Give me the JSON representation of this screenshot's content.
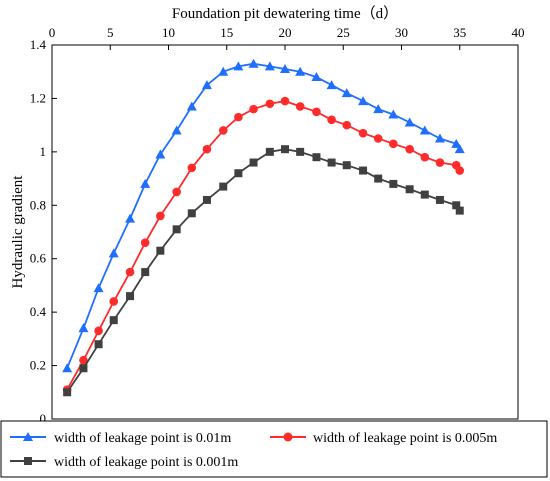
{
  "chart_data": {
    "type": "line",
    "xlabel": "Foundation pit dewatering time（d）",
    "ylabel": "Hydraulic gradient",
    "xlim": [
      0,
      40
    ],
    "ylim": [
      0,
      1.4
    ],
    "x_ticks": [
      0,
      5,
      10,
      15,
      20,
      25,
      30,
      35,
      40
    ],
    "y_ticks": [
      0,
      0.2,
      0.4,
      0.6,
      0.8,
      1,
      1.2,
      1.4
    ],
    "x_tick_labels": [
      "0",
      "5",
      "10",
      "15",
      "20",
      "25",
      "30",
      "35",
      "40"
    ],
    "y_tick_labels": [
      "0",
      "0.2",
      "0.4",
      "0.6",
      "0.8",
      "1",
      "1.2",
      "1.4"
    ],
    "x_axis_position": "top",
    "grid": false,
    "legend_position": "bottom",
    "series": [
      {
        "name": "width of leakage point is 0.01m",
        "color": "#1f6fff",
        "marker": "triangle",
        "x": [
          1.3,
          2.7,
          4.0,
          5.3,
          6.7,
          8.0,
          9.3,
          10.7,
          12.0,
          13.3,
          14.7,
          16.0,
          17.3,
          18.7,
          20.0,
          21.3,
          22.7,
          24.0,
          25.3,
          26.7,
          28.0,
          29.3,
          30.7,
          32.0,
          33.3,
          34.7,
          35.0
        ],
        "y": [
          0.19,
          0.34,
          0.49,
          0.62,
          0.75,
          0.88,
          0.99,
          1.08,
          1.17,
          1.25,
          1.3,
          1.32,
          1.33,
          1.32,
          1.31,
          1.3,
          1.28,
          1.25,
          1.22,
          1.19,
          1.16,
          1.14,
          1.11,
          1.08,
          1.05,
          1.03,
          1.01
        ]
      },
      {
        "name": "width of leakage point is 0.005m",
        "color": "#ff2b2b",
        "marker": "circle",
        "x": [
          1.3,
          2.7,
          4.0,
          5.3,
          6.7,
          8.0,
          9.3,
          10.7,
          12.0,
          13.3,
          14.7,
          16.0,
          17.3,
          18.7,
          20.0,
          21.3,
          22.7,
          24.0,
          25.3,
          26.7,
          28.0,
          29.3,
          30.7,
          32.0,
          33.3,
          34.7,
          35.0
        ],
        "y": [
          0.11,
          0.22,
          0.33,
          0.44,
          0.55,
          0.66,
          0.76,
          0.85,
          0.94,
          1.01,
          1.08,
          1.13,
          1.16,
          1.18,
          1.19,
          1.17,
          1.15,
          1.12,
          1.1,
          1.07,
          1.05,
          1.03,
          1.01,
          0.98,
          0.96,
          0.95,
          0.93
        ]
      },
      {
        "name": "width of leakage point is 0.001m",
        "color": "#404040",
        "marker": "square",
        "x": [
          1.3,
          2.7,
          4.0,
          5.3,
          6.7,
          8.0,
          9.3,
          10.7,
          12.0,
          13.3,
          14.7,
          16.0,
          17.3,
          18.7,
          20.0,
          21.3,
          22.7,
          24.0,
          25.3,
          26.7,
          28.0,
          29.3,
          30.7,
          32.0,
          33.3,
          34.7,
          35.0
        ],
        "y": [
          0.1,
          0.19,
          0.28,
          0.37,
          0.46,
          0.55,
          0.63,
          0.71,
          0.77,
          0.82,
          0.87,
          0.92,
          0.96,
          1.0,
          1.01,
          1.0,
          0.98,
          0.96,
          0.95,
          0.93,
          0.9,
          0.88,
          0.86,
          0.84,
          0.82,
          0.8,
          0.78
        ]
      }
    ]
  }
}
